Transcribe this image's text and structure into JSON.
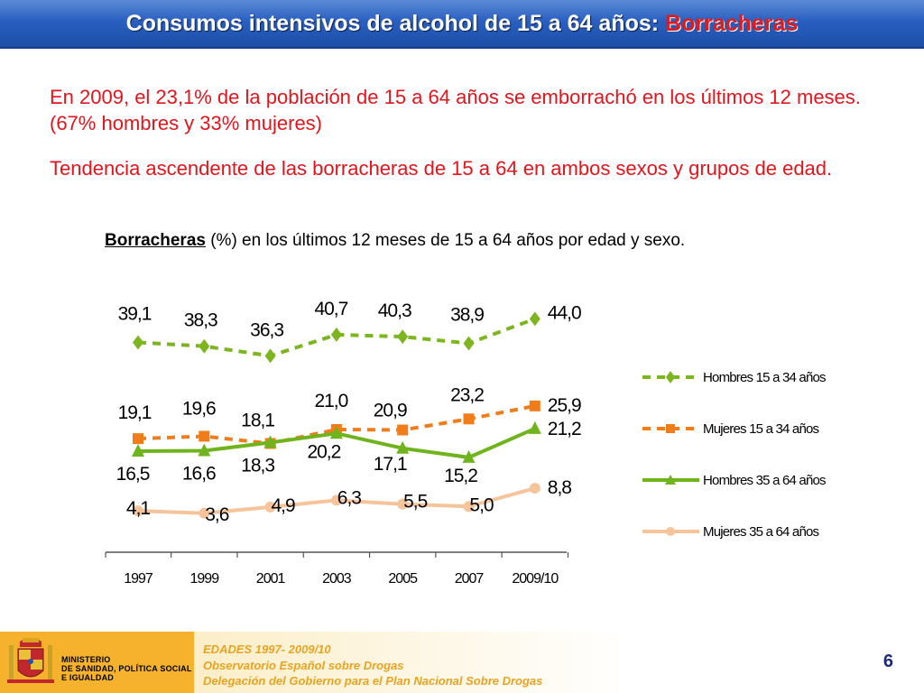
{
  "header": {
    "title_prefix": "Consumos intensivos de alcohol de 15 a 64 años: ",
    "title_highlight": "Borracheras"
  },
  "bullets": [
    "En 2009, el 23,1% de la población de 15 a 64 años se emborrachó en los últimos 12 meses. (67% hombres y 33% mujeres)",
    "Tendencia ascendente de las borracheras de 15 a 64 en ambos sexos y grupos de edad."
  ],
  "caption": {
    "strong": "Borracheras",
    "rest": " (%) en los últimos 12 meses de 15 a 64 años por edad y sexo."
  },
  "chart_data": {
    "type": "line",
    "title": "Borracheras (%) en los últimos 12 meses de 15 a 64 años por edad y sexo.",
    "categories": [
      "1997",
      "1999",
      "2001",
      "2003",
      "2005",
      "2007",
      "2009/10"
    ],
    "ylim": [
      0,
      45
    ],
    "grid": false,
    "legend": "right",
    "series": [
      {
        "name": "Hombres 15 a 34 años",
        "values": [
          39.1,
          38.3,
          36.3,
          40.7,
          40.3,
          38.9,
          44.0
        ],
        "labels": [
          "39,1",
          "38,3",
          "36,3",
          "40,7",
          "40,3",
          "38,9",
          "44,0"
        ],
        "color": "#7cb51f",
        "style": "dashed",
        "marker": "diamond"
      },
      {
        "name": "Mujeres 15 a 34 años",
        "values": [
          19.1,
          19.6,
          18.1,
          21.0,
          20.9,
          23.2,
          25.9
        ],
        "labels": [
          "19,1",
          "19,6",
          "18,1",
          "21,0",
          "20,9",
          "23,2",
          "25,9"
        ],
        "color": "#f07c1a",
        "style": "dashed",
        "marker": "square"
      },
      {
        "name": "Hombres 35 a 64 años",
        "values": [
          16.5,
          16.6,
          18.3,
          20.2,
          17.1,
          15.2,
          21.2
        ],
        "labels": [
          "16,5",
          "16,6",
          "18,3",
          "20,2",
          "17,1",
          "15,2",
          "21,2"
        ],
        "color": "#6fb41d",
        "style": "solid",
        "marker": "triangle"
      },
      {
        "name": "Mujeres 35 a 64 años",
        "values": [
          4.1,
          3.6,
          4.9,
          6.3,
          5.5,
          5.0,
          8.8
        ],
        "labels": [
          "4,1",
          "3,6",
          "4,9",
          "6,3",
          "5,5",
          "5,0",
          "8,8"
        ],
        "color": "#f6c49a",
        "style": "solid",
        "marker": "circle"
      }
    ]
  },
  "footer": {
    "ministry": [
      "MINISTERIO",
      "DE SANIDAD, POLÍTICA SOCIAL",
      "E IGUALDAD"
    ],
    "lines": [
      "EDADES 1997- 2009/10",
      "Observatorio Español sobre Drogas",
      "Delegación del Gobierno para el Plan Nacional Sobre Drogas"
    ],
    "page": "6"
  }
}
